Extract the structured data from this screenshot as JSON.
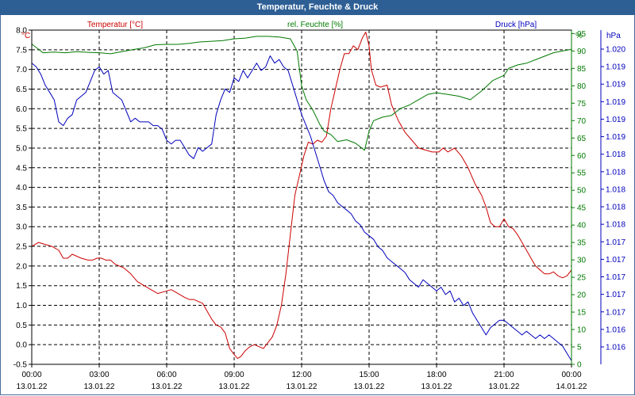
{
  "title": "Temperatur, Feuchte & Druck",
  "chart_data": {
    "type": "line",
    "title": "Temperatur, Feuchte & Druck",
    "series": [
      {
        "name": "Temperatur [°C]",
        "unit": "°C",
        "color": "#cc0000",
        "axis": "left",
        "ylim": [
          -0.5,
          8.0
        ],
        "points": [
          [
            0.0,
            2.5
          ],
          [
            0.3,
            2.6
          ],
          [
            0.6,
            2.55
          ],
          [
            0.9,
            2.5
          ],
          [
            1.2,
            2.4
          ],
          [
            1.4,
            2.2
          ],
          [
            1.6,
            2.2
          ],
          [
            1.8,
            2.3
          ],
          [
            2.0,
            2.25
          ],
          [
            2.2,
            2.2
          ],
          [
            2.5,
            2.15
          ],
          [
            2.7,
            2.15
          ],
          [
            2.9,
            2.2
          ],
          [
            3.1,
            2.2
          ],
          [
            3.3,
            2.15
          ],
          [
            3.5,
            2.15
          ],
          [
            3.7,
            2.05
          ],
          [
            3.9,
            2.0
          ],
          [
            4.1,
            1.95
          ],
          [
            4.4,
            1.8
          ],
          [
            4.7,
            1.6
          ],
          [
            5.0,
            1.5
          ],
          [
            5.3,
            1.4
          ],
          [
            5.6,
            1.3
          ],
          [
            5.9,
            1.35
          ],
          [
            6.2,
            1.4
          ],
          [
            6.5,
            1.3
          ],
          [
            6.8,
            1.2
          ],
          [
            7.0,
            1.15
          ],
          [
            7.2,
            1.15
          ],
          [
            7.4,
            1.1
          ],
          [
            7.6,
            1.05
          ],
          [
            7.8,
            0.85
          ],
          [
            8.0,
            0.65
          ],
          [
            8.2,
            0.5
          ],
          [
            8.4,
            0.45
          ],
          [
            8.6,
            0.3
          ],
          [
            8.8,
            -0.1
          ],
          [
            9.0,
            -0.25
          ],
          [
            9.15,
            -0.35
          ],
          [
            9.3,
            -0.3
          ],
          [
            9.5,
            -0.15
          ],
          [
            9.7,
            -0.05
          ],
          [
            9.9,
            0.0
          ],
          [
            10.1,
            -0.05
          ],
          [
            10.3,
            -0.1
          ],
          [
            10.5,
            0.05
          ],
          [
            10.7,
            0.2
          ],
          [
            10.9,
            0.5
          ],
          [
            11.1,
            1.0
          ],
          [
            11.3,
            1.8
          ],
          [
            11.5,
            2.8
          ],
          [
            11.7,
            3.8
          ],
          [
            11.9,
            4.3
          ],
          [
            12.1,
            4.8
          ],
          [
            12.3,
            5.15
          ],
          [
            12.5,
            5.1
          ],
          [
            12.7,
            5.2
          ],
          [
            12.9,
            5.15
          ],
          [
            13.1,
            5.3
          ],
          [
            13.3,
            6.0
          ],
          [
            13.5,
            6.5
          ],
          [
            13.7,
            7.0
          ],
          [
            13.9,
            7.4
          ],
          [
            14.1,
            7.4
          ],
          [
            14.3,
            7.6
          ],
          [
            14.5,
            7.5
          ],
          [
            14.7,
            7.8
          ],
          [
            14.85,
            7.95
          ],
          [
            15.0,
            7.6
          ],
          [
            15.1,
            7.0
          ],
          [
            15.3,
            6.6
          ],
          [
            15.5,
            6.55
          ],
          [
            15.8,
            6.6
          ],
          [
            16.0,
            6.1
          ],
          [
            16.3,
            5.7
          ],
          [
            16.6,
            5.4
          ],
          [
            16.9,
            5.2
          ],
          [
            17.2,
            5.0
          ],
          [
            17.5,
            4.95
          ],
          [
            17.8,
            4.9
          ],
          [
            18.1,
            4.9
          ],
          [
            18.3,
            5.0
          ],
          [
            18.5,
            4.9
          ],
          [
            18.8,
            5.0
          ],
          [
            19.1,
            4.8
          ],
          [
            19.4,
            4.5
          ],
          [
            19.7,
            4.1
          ],
          [
            20.0,
            3.8
          ],
          [
            20.2,
            3.5
          ],
          [
            20.4,
            3.1
          ],
          [
            20.6,
            3.0
          ],
          [
            20.8,
            3.0
          ],
          [
            21.0,
            3.2
          ],
          [
            21.2,
            3.0
          ],
          [
            21.4,
            2.95
          ],
          [
            21.6,
            2.8
          ],
          [
            21.8,
            2.6
          ],
          [
            22.0,
            2.4
          ],
          [
            22.2,
            2.2
          ],
          [
            22.4,
            2.0
          ],
          [
            22.6,
            1.9
          ],
          [
            22.8,
            1.8
          ],
          [
            23.0,
            1.8
          ],
          [
            23.2,
            1.85
          ],
          [
            23.4,
            1.75
          ],
          [
            23.6,
            1.7
          ],
          [
            23.8,
            1.75
          ],
          [
            24.0,
            1.9
          ]
        ]
      },
      {
        "name": "rel. Feuchte [%]",
        "unit": "%",
        "color": "#007a00",
        "axis": "right",
        "ylim": [
          0,
          96
        ],
        "points": [
          [
            0.0,
            92
          ],
          [
            0.5,
            89.5
          ],
          [
            1.0,
            89.7
          ],
          [
            1.5,
            89.5
          ],
          [
            2.0,
            89.8
          ],
          [
            2.5,
            89.6
          ],
          [
            3.0,
            89.5
          ],
          [
            3.5,
            89.2
          ],
          [
            4.0,
            89.8
          ],
          [
            4.5,
            90.4
          ],
          [
            5.0,
            90.9
          ],
          [
            5.5,
            91.8
          ],
          [
            6.0,
            91.9
          ],
          [
            6.5,
            91.9
          ],
          [
            7.0,
            92.2
          ],
          [
            7.5,
            92.6
          ],
          [
            8.0,
            92.8
          ],
          [
            8.5,
            93.0
          ],
          [
            9.0,
            93.5
          ],
          [
            9.5,
            93.7
          ],
          [
            10.0,
            94.2
          ],
          [
            10.5,
            94.2
          ],
          [
            11.0,
            94.0
          ],
          [
            11.5,
            93.5
          ],
          [
            11.8,
            90.0
          ],
          [
            12.0,
            80.0
          ],
          [
            12.2,
            76.0
          ],
          [
            12.5,
            73.0
          ],
          [
            12.8,
            69.0
          ],
          [
            13.0,
            67.0
          ],
          [
            13.3,
            66.0
          ],
          [
            13.6,
            64.0
          ],
          [
            14.0,
            64.5
          ],
          [
            14.4,
            63.5
          ],
          [
            14.8,
            61.5
          ],
          [
            15.0,
            67.0
          ],
          [
            15.2,
            70.0
          ],
          [
            15.6,
            71.0
          ],
          [
            16.0,
            71.5
          ],
          [
            16.4,
            73.5
          ],
          [
            16.8,
            74.5
          ],
          [
            17.2,
            76.0
          ],
          [
            17.6,
            77.5
          ],
          [
            18.0,
            78.0
          ],
          [
            18.5,
            77.5
          ],
          [
            19.0,
            77.0
          ],
          [
            19.5,
            76.0
          ],
          [
            20.0,
            78.5
          ],
          [
            20.5,
            81.5
          ],
          [
            21.0,
            83.0
          ],
          [
            21.2,
            85.0
          ],
          [
            21.6,
            86.0
          ],
          [
            22.0,
            86.5
          ],
          [
            22.4,
            87.5
          ],
          [
            22.8,
            88.5
          ],
          [
            23.2,
            89.5
          ],
          [
            23.6,
            90.0
          ],
          [
            24.0,
            90.5
          ]
        ]
      },
      {
        "name": "Druck [hPa]",
        "unit": "hPa",
        "color": "#0000bb",
        "axis": "right2",
        "ylim": [
          1015.9,
          1020.45
        ],
        "points": [
          [
            0.0,
            1020.0
          ],
          [
            0.2,
            1019.95
          ],
          [
            0.4,
            1019.85
          ],
          [
            0.6,
            1019.7
          ],
          [
            0.8,
            1019.6
          ],
          [
            1.0,
            1019.5
          ],
          [
            1.2,
            1019.2
          ],
          [
            1.4,
            1019.15
          ],
          [
            1.6,
            1019.25
          ],
          [
            1.8,
            1019.3
          ],
          [
            2.0,
            1019.5
          ],
          [
            2.2,
            1019.55
          ],
          [
            2.4,
            1019.6
          ],
          [
            2.6,
            1019.75
          ],
          [
            2.8,
            1019.9
          ],
          [
            3.0,
            1019.95
          ],
          [
            3.2,
            1019.85
          ],
          [
            3.4,
            1019.9
          ],
          [
            3.6,
            1019.6
          ],
          [
            3.8,
            1019.55
          ],
          [
            4.0,
            1019.5
          ],
          [
            4.2,
            1019.35
          ],
          [
            4.4,
            1019.2
          ],
          [
            4.6,
            1019.25
          ],
          [
            4.8,
            1019.2
          ],
          [
            5.0,
            1019.2
          ],
          [
            5.2,
            1019.2
          ],
          [
            5.4,
            1019.15
          ],
          [
            5.6,
            1019.15
          ],
          [
            5.8,
            1019.1
          ],
          [
            6.0,
            1018.95
          ],
          [
            6.2,
            1018.9
          ],
          [
            6.4,
            1018.95
          ],
          [
            6.6,
            1018.95
          ],
          [
            6.8,
            1018.85
          ],
          [
            7.0,
            1018.75
          ],
          [
            7.2,
            1018.7
          ],
          [
            7.4,
            1018.85
          ],
          [
            7.6,
            1018.8
          ],
          [
            7.8,
            1018.85
          ],
          [
            8.0,
            1018.9
          ],
          [
            8.2,
            1019.3
          ],
          [
            8.4,
            1019.5
          ],
          [
            8.6,
            1019.65
          ],
          [
            8.8,
            1019.6
          ],
          [
            9.0,
            1019.8
          ],
          [
            9.2,
            1019.75
          ],
          [
            9.4,
            1019.9
          ],
          [
            9.6,
            1019.8
          ],
          [
            9.8,
            1019.9
          ],
          [
            10.0,
            1020.0
          ],
          [
            10.2,
            1019.9
          ],
          [
            10.4,
            1019.95
          ],
          [
            10.6,
            1020.1
          ],
          [
            10.8,
            1020.0
          ],
          [
            11.0,
            1020.05
          ],
          [
            11.2,
            1019.95
          ],
          [
            11.4,
            1019.9
          ],
          [
            11.6,
            1019.7
          ],
          [
            11.8,
            1019.5
          ],
          [
            12.0,
            1019.3
          ],
          [
            12.2,
            1019.15
          ],
          [
            12.4,
            1019.0
          ],
          [
            12.6,
            1018.8
          ],
          [
            12.8,
            1018.6
          ],
          [
            13.0,
            1018.4
          ],
          [
            13.2,
            1018.25
          ],
          [
            13.4,
            1018.2
          ],
          [
            13.6,
            1018.1
          ],
          [
            13.8,
            1018.05
          ],
          [
            14.0,
            1018.0
          ],
          [
            14.2,
            1017.95
          ],
          [
            14.4,
            1017.85
          ],
          [
            14.6,
            1017.8
          ],
          [
            14.8,
            1017.7
          ],
          [
            15.0,
            1017.65
          ],
          [
            15.2,
            1017.6
          ],
          [
            15.4,
            1017.5
          ],
          [
            15.6,
            1017.45
          ],
          [
            15.8,
            1017.35
          ],
          [
            16.0,
            1017.3
          ],
          [
            16.2,
            1017.25
          ],
          [
            16.4,
            1017.2
          ],
          [
            16.6,
            1017.15
          ],
          [
            16.8,
            1017.05
          ],
          [
            17.0,
            1017.0
          ],
          [
            17.2,
            1016.95
          ],
          [
            17.4,
            1017.05
          ],
          [
            17.6,
            1017.0
          ],
          [
            17.8,
            1016.95
          ],
          [
            18.0,
            1016.9
          ],
          [
            18.2,
            1016.95
          ],
          [
            18.4,
            1016.85
          ],
          [
            18.6,
            1016.9
          ],
          [
            18.8,
            1016.75
          ],
          [
            19.0,
            1016.8
          ],
          [
            19.2,
            1016.7
          ],
          [
            19.4,
            1016.75
          ],
          [
            19.6,
            1016.6
          ],
          [
            19.8,
            1016.5
          ],
          [
            20.0,
            1016.4
          ],
          [
            20.2,
            1016.3
          ],
          [
            20.4,
            1016.4
          ],
          [
            20.6,
            1016.45
          ],
          [
            20.8,
            1016.5
          ],
          [
            21.0,
            1016.5
          ],
          [
            21.2,
            1016.45
          ],
          [
            21.4,
            1016.4
          ],
          [
            21.6,
            1016.35
          ],
          [
            21.8,
            1016.3
          ],
          [
            22.0,
            1016.35
          ],
          [
            22.2,
            1016.3
          ],
          [
            22.4,
            1016.25
          ],
          [
            22.6,
            1016.3
          ],
          [
            22.8,
            1016.25
          ],
          [
            23.0,
            1016.3
          ],
          [
            23.2,
            1016.25
          ],
          [
            23.4,
            1016.2
          ],
          [
            23.6,
            1016.15
          ],
          [
            23.8,
            1016.05
          ],
          [
            24.0,
            1015.95
          ]
        ]
      }
    ],
    "xlim": [
      0,
      24
    ],
    "x_ticks": [
      {
        "time": "00:00",
        "date": "13.01.22"
      },
      {
        "time": "03:00",
        "date": "13.01.22"
      },
      {
        "time": "06:00",
        "date": "13.01.22"
      },
      {
        "time": "09:00",
        "date": "13.01.22"
      },
      {
        "time": "12:00",
        "date": "13.01.22"
      },
      {
        "time": "15:00",
        "date": "13.01.22"
      },
      {
        "time": "18:00",
        "date": "13.01.22"
      },
      {
        "time": "21:00",
        "date": "13.01.22"
      },
      {
        "time": "00:00",
        "date": "14.01.22"
      }
    ],
    "temp_axis": {
      "unit_label": "°C",
      "ticks": [
        "8.0",
        "7.5",
        "7.0",
        "6.5",
        "6.0",
        "5.5",
        "5.0",
        "4.5",
        "4.0",
        "3.5",
        "3.0",
        "2.5",
        "2.0",
        "1.5",
        "1.0",
        "0.5",
        "0.0",
        "-0.5"
      ]
    },
    "humidity_axis": {
      "unit_label": "%",
      "ticks": [
        "95",
        "90",
        "85",
        "80",
        "75",
        "70",
        "65",
        "60",
        "55",
        "50",
        "45",
        "40",
        "35",
        "30",
        "25",
        "20",
        "15",
        "10",
        "5",
        "0"
      ]
    },
    "pressure_axis": {
      "unit_label": "hPa",
      "ticks": [
        "1.020",
        "1.019",
        "1.019",
        "1.019",
        "1.019",
        "1.019",
        "1.018",
        "1.018",
        "1.018",
        "1.018",
        "1.018",
        "1.017",
        "1.017",
        "1.017",
        "1.017",
        "1.017",
        "1.016",
        "1.016"
      ]
    },
    "grid": true,
    "legend": "top"
  }
}
